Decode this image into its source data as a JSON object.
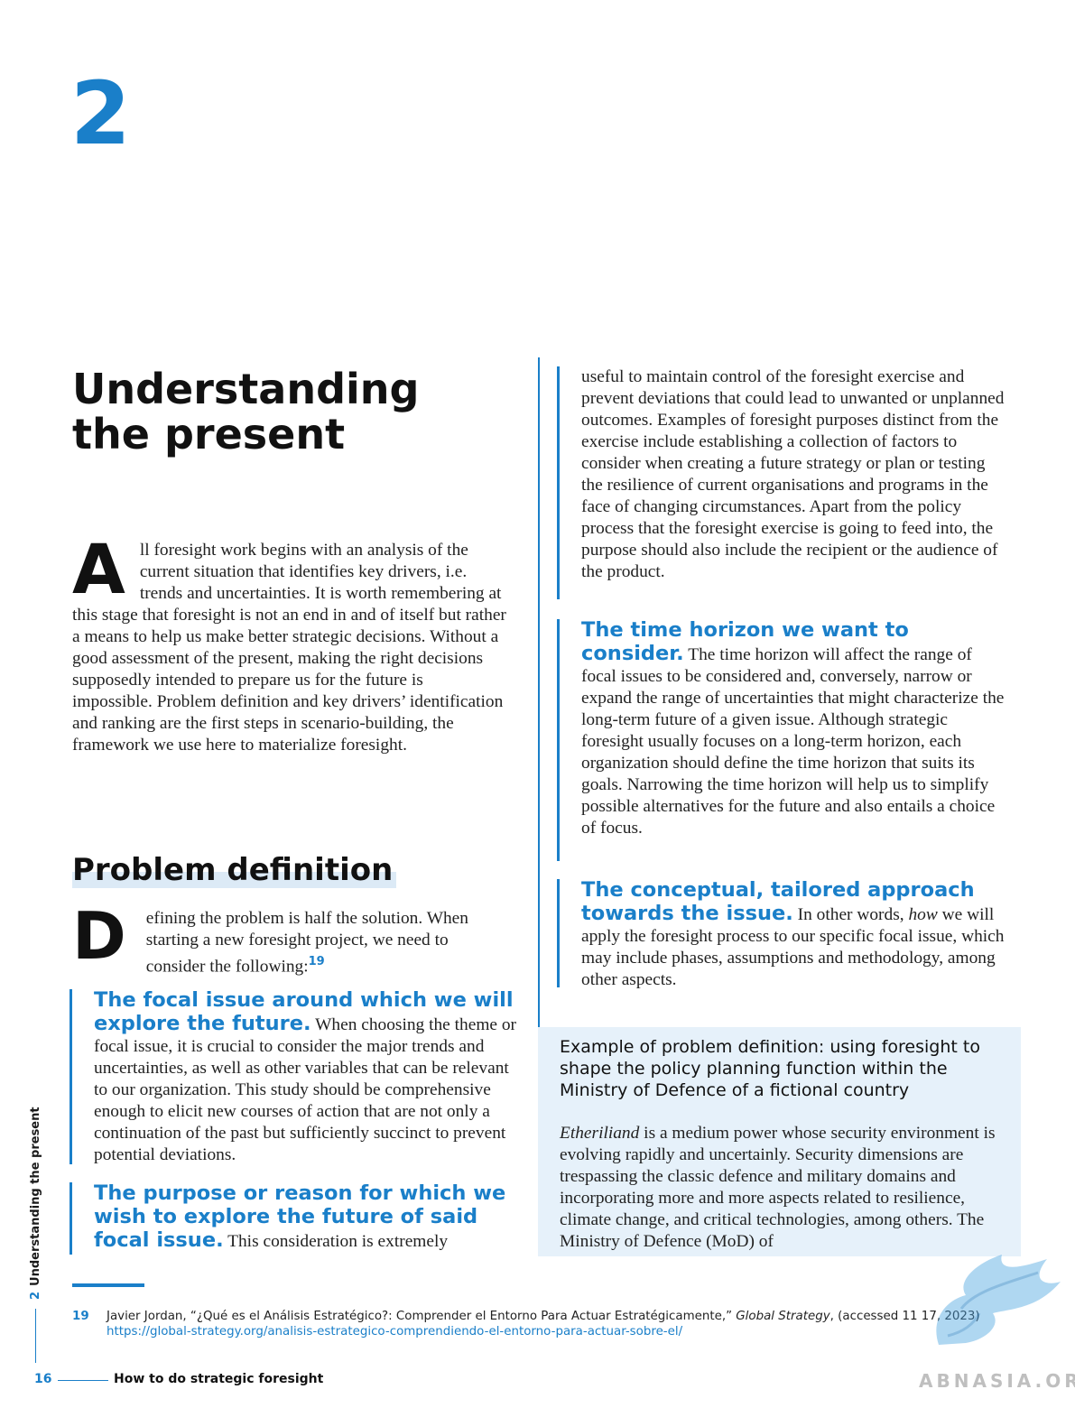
{
  "chapter": {
    "number": "2",
    "title": "Understanding the present"
  },
  "intro": {
    "dropcap": "A",
    "text": "ll foresight work begins with an analysis of the current situation that identifies key drivers, i.e. trends and uncertainties. It is worth remembering at this stage that foresight is not an end in and of itself but rather a means to help us make better strategic decisions. Without a good assessment of the present, making the right decisions supposedly intended to prepare us for the future is impossible. Problem definition and key drivers’ identification and ranking are the first steps in scenario-building, the framework we use here to materialize foresight."
  },
  "problem_definition": {
    "heading": "Problem definition",
    "dropcap": "D",
    "text": "efining the problem is half the solution. When starting a new foresight project, we need to consider the following:",
    "footnote_ref": "19"
  },
  "items": {
    "focal": {
      "keyword": "The focal issue around which we will explore the future.",
      "text": " When choosing the theme or focal issue, it is crucial to consider the major trends and uncertainties, as well as other variables that can be relevant to our organization. This study should be comprehensive enough to elicit new courses of action that are not only a continuation of the past but sufficiently succinct to prevent potential deviations."
    },
    "purpose": {
      "keyword": "The purpose or reason for which we wish to explore the future of said focal issue.",
      "text_left": " This consideration is extremely",
      "text_right": "useful to maintain control of the foresight exercise and prevent deviations that could lead to unwanted or unplanned outcomes. Examples of foresight purposes distinct from the exercise include establishing a collection of factors to consider when creating a future strategy or plan or testing the resilience of current organisations and programs in the face of changing circumstances. Apart from the policy process that the foresight exercise is going to feed into, the purpose should also include the recipient or the audience of the product."
    },
    "horizon": {
      "keyword": "The time horizon we want to consider.",
      "text": " The time horizon will affect the range of focal issues to be considered and, conversely, narrow or expand the range of uncertainties that might characterize the long-term future of a given issue. Although strategic foresight usually focuses on a long-term horizon, each organization should define the time horizon that suits its goals. Narrowing the time horizon will help us to simplify possible alternatives for the future and also entails a choice of focus."
    },
    "approach": {
      "keyword": "The conceptual, tailored approach towards the issue.",
      "text_before": " In other words, ",
      "emphasis": "how",
      "text_after": " we will apply the foresight process to our specific focal issue, which may include phases, assumptions and methodology, among other aspects."
    }
  },
  "example_box": {
    "title": "Example of problem definition: using foresight to shape the policy planning function within the Ministry of Defence of a fictional country",
    "country": "Etheriliand",
    "text": " is a medium power whose security environment is evolving rapidly and uncertainly. Security dimensions are trespassing the classic defence and military domains and incorporating more and more aspects related to resilience, climate change, and critical technologies, among others. The Ministry of Defence (MoD) of"
  },
  "footnote": {
    "number": "19",
    "text_before": "Javier Jordan, “¿Qué es el Análisis Estratégico?: Comprender el Entorno Para Actuar Estratégicamente,” ",
    "journal": "Global Strategy",
    "text_after": ", (accessed 11 17, 2023) ",
    "url": "https://global-strategy.org/analisis-estrategico-comprendiendo-el-entorno-para-actuar-sobre-el/"
  },
  "sidebar": {
    "chapter_number": "2",
    "chapter_label": "Understanding the present"
  },
  "footer": {
    "page_number": "16",
    "book_title": "How to do strategic foresight"
  },
  "watermark": {
    "text": "ABNASIA.ORG"
  },
  "colors": {
    "accent": "#1a7fc9",
    "box_bg": "#e6f1fa"
  }
}
